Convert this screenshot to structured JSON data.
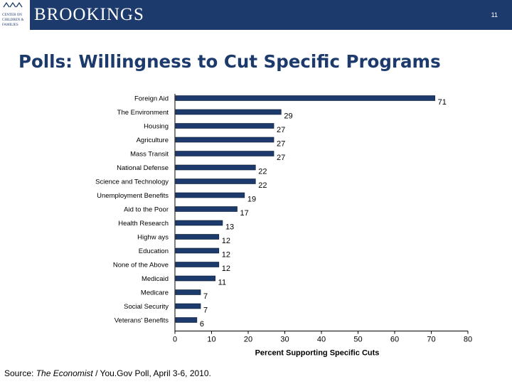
{
  "header": {
    "brand": "BROOKINGS",
    "logo_text": [
      "CENTER ON",
      "CHILDREN &",
      "FAMILIES"
    ],
    "slide_number": "11",
    "color": "#1d3a6c"
  },
  "title": "Polls: Willingness to Cut Specific Programs",
  "source": {
    "prefix": "Source: ",
    "publication": "The Economist",
    "suffix": " / You.Gov Poll, April 3-6, 2010."
  },
  "chart_data": {
    "type": "bar",
    "orientation": "horizontal",
    "categories": [
      "Foreign Aid",
      "The Environment",
      "Housing",
      "Agriculture",
      "Mass Transit",
      "National Defense",
      "Science and Technology",
      "Unemployment Benefits",
      "Aid to the Poor",
      "Health Research",
      "Highw ays",
      "Education",
      "None of the Above",
      "Medicaid",
      "Medicare",
      "Social Security",
      "Veterans' Benefits"
    ],
    "values": [
      71,
      29,
      27,
      27,
      27,
      22,
      22,
      19,
      17,
      13,
      12,
      12,
      12,
      11,
      7,
      7,
      6
    ],
    "xlabel": "Percent Supporting Specific Cuts",
    "ylabel": "",
    "xlim": [
      0,
      80
    ],
    "xticks": [
      0,
      10,
      20,
      30,
      40,
      50,
      60,
      70,
      80
    ],
    "bar_color": "#1d3a6c",
    "grid": false
  }
}
